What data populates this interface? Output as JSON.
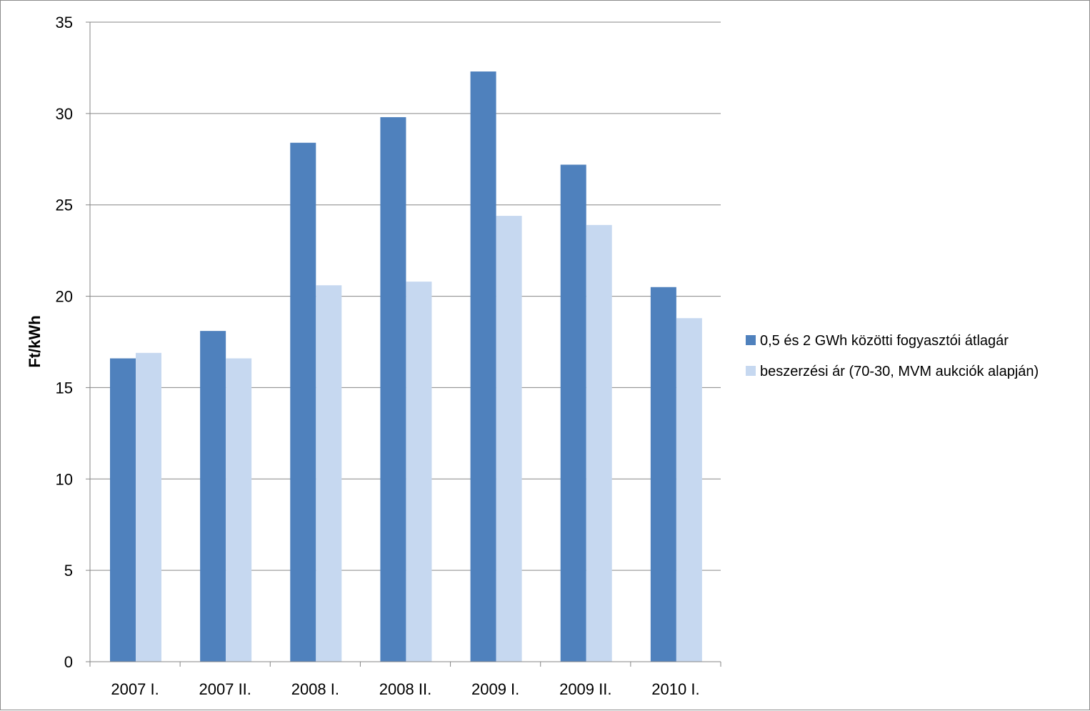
{
  "chart_data": {
    "type": "bar",
    "categories": [
      "2007 I.",
      "2007 II.",
      "2008 I.",
      "2008 II.",
      "2009 I.",
      "2009 II.",
      "2010 I."
    ],
    "series": [
      {
        "name": "0,5 és 2 GWh közötti fogyasztói átlagár",
        "color": "#4f81bd",
        "values": [
          16.6,
          18.1,
          28.4,
          29.8,
          32.3,
          27.2,
          20.5
        ]
      },
      {
        "name": "beszerzési ár (70-30, MVM aukciók alapján)",
        "color": "#c6d8f0",
        "values": [
          16.9,
          16.6,
          20.6,
          20.8,
          24.4,
          23.9,
          18.8
        ]
      }
    ],
    "ylabel": "Ft/kWh",
    "xlabel": "",
    "title": "",
    "ylim": [
      0,
      35
    ],
    "yticks": [
      "0",
      "5",
      "10",
      "15",
      "20",
      "25",
      "30",
      "35"
    ],
    "grid": true,
    "legend_position": "right"
  }
}
